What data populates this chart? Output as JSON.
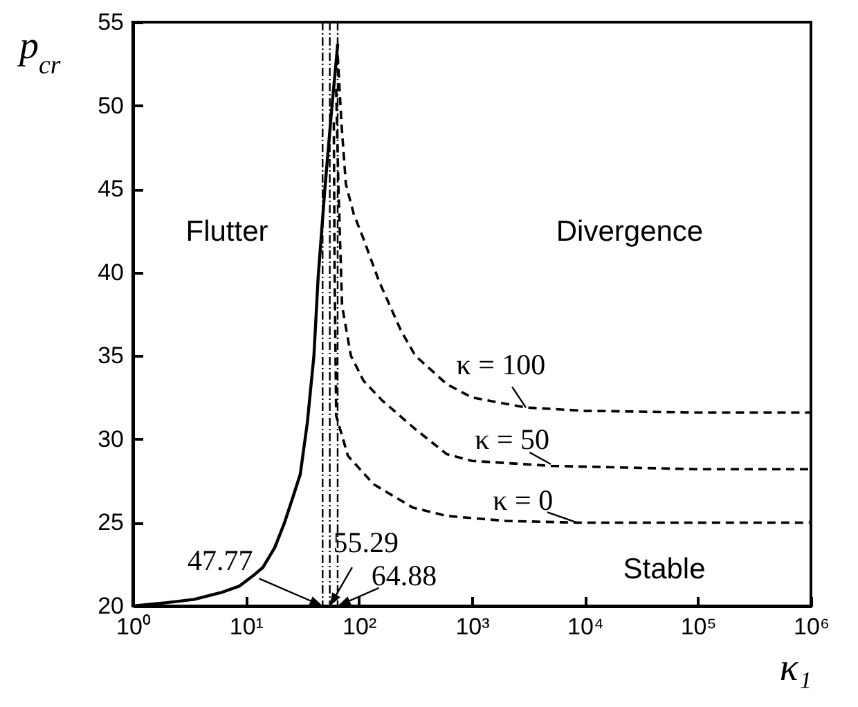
{
  "chart_data": {
    "type": "line",
    "xlabel": "κ₁",
    "ylabel": "p$_{cr}$",
    "log": "x",
    "xlim": [
      1,
      1000000
    ],
    "xticks": [
      {
        "value": 1,
        "label": "10⁰"
      },
      {
        "value": 10,
        "label": "10¹"
      },
      {
        "value": 100,
        "label": "10²"
      },
      {
        "value": 1000,
        "label": "10³"
      },
      {
        "value": 10000,
        "label": "10⁴"
      },
      {
        "value": 100000,
        "label": "10⁵"
      },
      {
        "value": 1000000,
        "label": "10⁶"
      }
    ],
    "ylim": [
      20,
      55
    ],
    "yticks": [
      20,
      25,
      30,
      35,
      40,
      45,
      50,
      55
    ],
    "grid": false,
    "series": [
      {
        "color": "#000000",
        "line_style": "solid",
        "x": [
          1,
          2,
          3.5,
          6,
          8.8,
          12,
          14.1,
          18,
          22,
          26,
          30.3,
          35,
          40,
          43.6,
          50,
          57,
          65
        ],
        "values": [
          20,
          20.2,
          20.4,
          20.8,
          21.2,
          21.9,
          22.3,
          23.5,
          25,
          26.5,
          27.9,
          31,
          35,
          39.7,
          45,
          49.5,
          53.7
        ]
      },
      {
        "color": "#000000",
        "line_style": "dashed",
        "x": [
          65,
          70,
          76.7,
          90,
          110,
          150,
          236,
          316,
          600,
          1000,
          3000,
          10000,
          100000,
          1000000
        ],
        "values": [
          53,
          49,
          45.3,
          43.5,
          42,
          39.5,
          36.5,
          35,
          33.3,
          32.5,
          31.9,
          31.7,
          31.6,
          31.6
        ]
      },
      {
        "color": "#000000",
        "line_style": "dashed",
        "x": [
          63,
          66,
          71,
          85,
          110,
          162,
          316,
          600,
          1000,
          5000,
          100000,
          1000000
        ],
        "values": [
          51,
          45,
          38,
          35,
          33.5,
          32.3,
          30.6,
          29.1,
          28.7,
          28.4,
          28.2,
          28.2
        ]
      },
      {
        "color": "#000000",
        "line_style": "dashed",
        "x": [
          60,
          61,
          63,
          80,
          135,
          300,
          600,
          2000,
          8500,
          1000000
        ],
        "values": [
          49,
          40,
          31.4,
          29,
          27.3,
          25.9,
          25.4,
          25.1,
          25,
          25
        ]
      }
    ],
    "ref_lines": [
      {
        "axis": "x",
        "value": 47.77,
        "color": "#000000",
        "line_style": "dashed"
      },
      {
        "axis": "x",
        "value": 55.29,
        "color": "#000000",
        "line_style": "dashed"
      },
      {
        "axis": "x",
        "value": 64.88,
        "color": "#000000",
        "line_style": "dashed"
      }
    ],
    "annotations": [
      "Flutter",
      "Divergence",
      "Stable",
      {
        "text": "κ = 100",
        "x": 3000,
        "y": 31.9
      },
      {
        "text": "κ = 50",
        "x": 5000,
        "y": 28.5
      },
      {
        "text": "κ = 0",
        "x": 8500,
        "y": 25
      },
      {
        "text": "47.77",
        "x": 47.77,
        "y": 20
      },
      {
        "text": "55.29",
        "x": 55.29,
        "y": 20
      },
      {
        "text": "64.88",
        "x": 64.88,
        "y": 20
      }
    ]
  }
}
